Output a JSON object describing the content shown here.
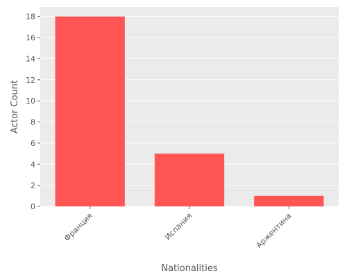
{
  "chart_data": {
    "type": "bar",
    "title": "",
    "xlabel": "Nationalities",
    "ylabel": "Actor Count",
    "categories": [
      "Франция",
      "Испания",
      "Аржентина"
    ],
    "values": [
      18,
      5,
      1
    ],
    "ylim": [
      0,
      18.9
    ],
    "yticks": [
      0,
      2,
      4,
      6,
      8,
      10,
      12,
      14,
      16,
      18
    ],
    "grid": true,
    "bar_color": "#ff5555",
    "plot_background": "#ebebeb",
    "text_color": "#555555"
  }
}
